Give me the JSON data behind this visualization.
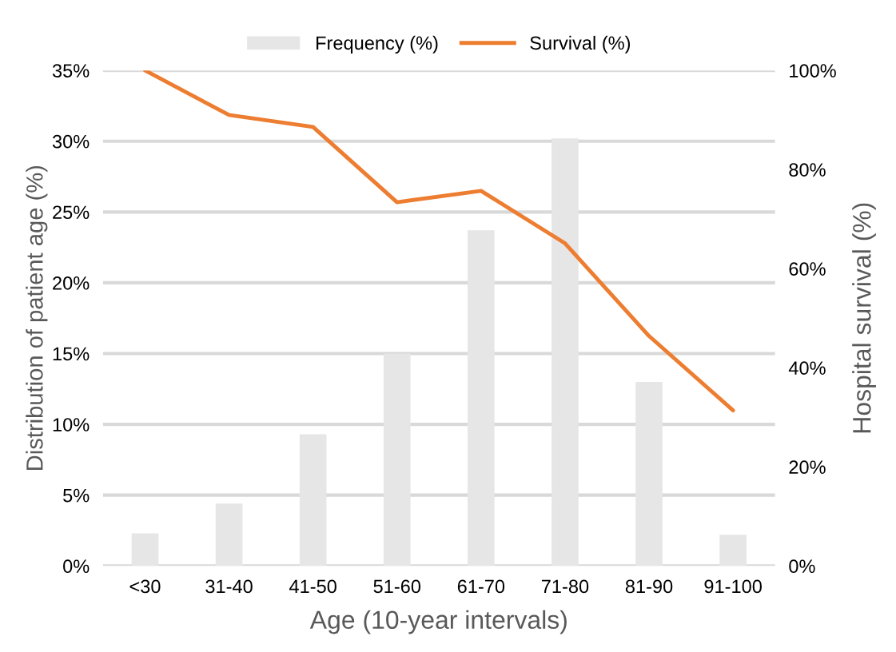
{
  "chart_data": {
    "type": "bar",
    "categories": [
      "<30",
      "31-40",
      "41-50",
      "51-60",
      "61-70",
      "71-80",
      "81-90",
      "91-100"
    ],
    "series": [
      {
        "name": "Frequency (%)",
        "color": "#e6e6e6",
        "values": [
          2.3,
          4.4,
          9.3,
          15.0,
          23.7,
          30.2,
          13.0,
          2.2
        ]
      },
      {
        "name": "Survival (%)",
        "type": "line",
        "axis": "y2",
        "color": "#ed7d31",
        "values": [
          100,
          91,
          88.6,
          73.4,
          75.7,
          65.1,
          46.4,
          31.4
        ]
      }
    ],
    "xlabel": "Age (10-year intervals)",
    "ylabel": "Distribution of patient age (%)",
    "y2label": "Hospital survival (%)",
    "ylim": [
      0,
      35
    ],
    "yticks": [
      {
        "value": 0,
        "label": "0%"
      },
      {
        "value": 5,
        "label": "5%"
      },
      {
        "value": 10,
        "label": "10%"
      },
      {
        "value": 15,
        "label": "15%"
      },
      {
        "value": 20,
        "label": "20%"
      },
      {
        "value": 25,
        "label": "25%"
      },
      {
        "value": 30,
        "label": "30%"
      },
      {
        "value": 35,
        "label": "35%"
      }
    ],
    "y2lim": [
      0,
      100
    ],
    "y2ticks": [
      {
        "value": 0,
        "label": "0%"
      },
      {
        "value": 20,
        "label": "20%"
      },
      {
        "value": 40,
        "label": "40%"
      },
      {
        "value": 60,
        "label": "60%"
      },
      {
        "value": 80,
        "label": "80%"
      },
      {
        "value": 100,
        "label": "100%"
      }
    ],
    "grid": "y",
    "legend": "top",
    "marker": "none",
    "line_style": "solid"
  }
}
